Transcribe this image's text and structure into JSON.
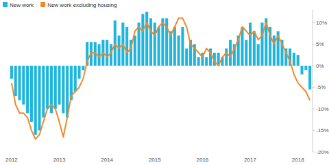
{
  "chart_data": {
    "type": "bar",
    "categories": [
      "2012",
      null,
      null,
      null,
      null,
      null,
      null,
      null,
      null,
      null,
      null,
      null,
      "2013",
      null,
      null,
      null,
      null,
      null,
      null,
      null,
      null,
      null,
      null,
      null,
      "2014",
      null,
      null,
      null,
      null,
      null,
      null,
      null,
      null,
      null,
      null,
      null,
      "2015",
      null,
      null,
      null,
      null,
      null,
      null,
      null,
      null,
      null,
      null,
      null,
      "2016",
      null,
      null,
      null,
      null,
      null,
      null,
      null,
      null,
      null,
      null,
      null,
      "2017",
      null,
      null,
      null,
      null,
      null,
      null,
      null,
      null,
      null,
      null,
      null,
      "2018",
      null,
      null,
      null
    ],
    "series": [
      {
        "name": "New work",
        "type": "bar",
        "color": "#1fb5dc",
        "values": [
          -3,
          -7,
          -8,
          -9,
          -11,
          -13,
          -16,
          -15,
          -12,
          -10,
          -11,
          -10,
          -9,
          -11,
          -12,
          -8,
          -6,
          -3,
          -1,
          5.5,
          5.5,
          5.5,
          5,
          6,
          6,
          5,
          10.5,
          7,
          10,
          9,
          6,
          7,
          10,
          12,
          12.5,
          11,
          10,
          9,
          11,
          11,
          8,
          9,
          7,
          9,
          4,
          6,
          5,
          2,
          3,
          2,
          4,
          3,
          3,
          2,
          4,
          6,
          5,
          7,
          9,
          6,
          10,
          8,
          5,
          10,
          11,
          9,
          7,
          8,
          6,
          4,
          4,
          3,
          2.5,
          -2,
          -1,
          -5.5
        ]
      },
      {
        "name": "New work excluding housing",
        "type": "line",
        "color": "#f0892b",
        "values": [
          -4,
          -9,
          -11,
          -11,
          -12,
          -15,
          -17,
          -16,
          -13,
          -10,
          -9,
          -10,
          -13,
          -16.5,
          -12,
          -7,
          -6,
          -5,
          -3,
          1,
          3,
          3,
          2,
          3,
          2,
          3,
          5,
          4,
          5,
          3,
          4,
          8,
          9,
          8,
          10,
          8,
          7,
          9,
          10,
          9,
          7,
          9,
          11,
          11,
          9,
          5,
          4,
          3,
          2,
          4,
          3,
          1,
          0,
          2,
          3,
          2,
          4,
          6,
          9,
          8,
          7,
          8,
          6,
          7,
          10,
          7,
          5,
          7,
          5,
          3,
          1,
          -2,
          -4,
          -5,
          -6,
          -8
        ]
      }
    ],
    "ylim": [
      -20,
      13
    ],
    "yticks": [
      {
        "value": 10,
        "label": "10%"
      },
      {
        "value": 5,
        "label": "5%"
      },
      {
        "value": 0,
        "label": "0%"
      },
      {
        "value": -5,
        "label": "-5%"
      },
      {
        "value": -10,
        "label": "-10%"
      },
      {
        "value": -15,
        "label": "-15%"
      },
      {
        "value": -20,
        "label": "-20%"
      }
    ],
    "grid": false,
    "legend": "top-left"
  }
}
